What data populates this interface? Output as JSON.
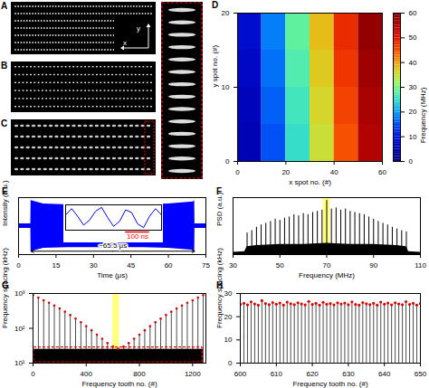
{
  "chart_data": [
    {
      "panel": "A",
      "type": "image",
      "labels": [
        "x",
        "y"
      ]
    },
    {
      "panel": "B",
      "type": "image"
    },
    {
      "panel": "C",
      "type": "image"
    },
    {
      "panel": "D",
      "type": "heatmap",
      "x_label": "x spot no. (#)",
      "y_label": "y spot no. (#)",
      "xlim": [
        0,
        60
      ],
      "xticks": [
        0,
        20,
        40,
        60
      ],
      "ylim": [
        0,
        20
      ],
      "yticks": [
        0,
        10,
        20
      ],
      "x_edges": [
        0,
        10,
        20,
        30,
        40,
        50,
        60
      ],
      "y_edges": [
        0,
        5,
        10,
        15,
        20
      ],
      "cells": [
        [
          5,
          15,
          25,
          35,
          45,
          55
        ],
        [
          6,
          16,
          26,
          36,
          46,
          56
        ],
        [
          7,
          17,
          27,
          37,
          47,
          57
        ],
        [
          8,
          18,
          28,
          38,
          48,
          58
        ]
      ],
      "colorbar": {
        "label": "Frequency (MHz)",
        "lim": [
          0,
          60
        ],
        "ticks": [
          0,
          10,
          20,
          30,
          40,
          50,
          60
        ]
      }
    },
    {
      "panel": "E",
      "type": "area",
      "x_label": "Time (μs)",
      "y_label": "Intensity (a.u.)",
      "xlim": [
        0,
        75
      ],
      "xticks": [
        0,
        15,
        30,
        45,
        60,
        75
      ],
      "ylim": [
        -1,
        1
      ],
      "tick_labels": "x",
      "color": "#0000ff",
      "x": [
        0,
        4.9,
        5,
        10,
        20,
        30,
        40,
        50,
        60,
        70,
        70.5,
        70.6,
        75
      ],
      "upper": [
        0.08,
        0.08,
        0.9,
        0.78,
        0.75,
        0.75,
        0.75,
        0.75,
        0.78,
        0.85,
        0.9,
        0.08,
        0.08
      ],
      "lower": [
        -0.08,
        -0.08,
        -0.9,
        -0.78,
        -0.75,
        -0.75,
        -0.75,
        -0.75,
        -0.78,
        -0.85,
        -0.9,
        -0.08,
        -0.08
      ],
      "annotation": {
        "text": "~65.5 μs",
        "x1": 5,
        "x2": 70.5
      },
      "inset": {
        "xlim": [
          0,
          400
        ],
        "ylim": [
          -1,
          1
        ],
        "color": "#0000ff",
        "x": [
          0,
          25,
          50,
          75,
          100,
          125,
          150,
          175,
          200,
          225,
          250,
          275,
          300,
          325,
          350,
          375,
          400
        ],
        "values": [
          0.2,
          0.7,
          0.1,
          -0.6,
          -0.2,
          0.5,
          0.8,
          0.0,
          -0.7,
          -0.3,
          0.6,
          0.4,
          -0.5,
          -0.8,
          0.1,
          0.7,
          0.2
        ],
        "scale_bar": {
          "value": 100,
          "label": "100 ns"
        }
      }
    },
    {
      "panel": "F",
      "type": "stem",
      "x_label": "Frequency (MHz)",
      "y_label": "PSD (a.u.)",
      "xlim": [
        30,
        110
      ],
      "xticks": [
        30,
        50,
        70,
        90,
        110
      ],
      "ylim": [
        0,
        100
      ],
      "tick_labels": "x",
      "color": "#000000",
      "x": [
        36,
        38,
        40,
        42,
        44,
        46,
        48,
        50,
        52,
        54,
        56,
        58,
        60,
        62,
        64,
        66,
        68,
        70,
        72,
        74,
        76,
        78,
        80,
        82,
        84,
        86,
        88,
        90,
        92,
        94,
        96,
        98,
        100,
        102,
        104
      ],
      "values": [
        38,
        42,
        48,
        52,
        55,
        58,
        62,
        60,
        64,
        66,
        70,
        68,
        72,
        70,
        74,
        76,
        78,
        95,
        80,
        82,
        78,
        80,
        76,
        74,
        72,
        70,
        66,
        62,
        58,
        55,
        52,
        48,
        45,
        42,
        40
      ],
      "noise_floor": {
        "x": [
          30,
          35,
          36,
          40,
          50,
          60,
          70,
          80,
          90,
          100,
          104,
          105,
          110
        ],
        "values": [
          4,
          5,
          14,
          16,
          18,
          18,
          20,
          18,
          18,
          16,
          14,
          5,
          4
        ]
      },
      "highlight": [
        68.5,
        71.5
      ]
    },
    {
      "panel": "G",
      "type": "stem",
      "log": "y",
      "x_label": "Frequency tooth no. (#)",
      "y_label": "Frequency spacing (kHz)",
      "xlim": [
        0,
        1300
      ],
      "xticks": [
        0,
        400,
        800,
        1200
      ],
      "ylim": [
        10,
        1000
      ],
      "yticks": [
        {
          "value": 10,
          "label": "10¹"
        },
        {
          "value": 100,
          "label": "10²"
        },
        {
          "value": 1000,
          "label": "10³"
        }
      ],
      "color": "#e00000",
      "marker": "circle",
      "x": [
        0,
        40,
        80,
        120,
        160,
        200,
        240,
        280,
        320,
        360,
        400,
        440,
        480,
        520,
        560,
        600,
        640,
        680,
        720,
        760,
        800,
        840,
        880,
        920,
        960,
        1000,
        1040,
        1080,
        1120,
        1160,
        1200,
        1240,
        1280
      ],
      "values": [
        900,
        760,
        640,
        540,
        450,
        370,
        300,
        240,
        190,
        150,
        115,
        88,
        66,
        50,
        38,
        30,
        26,
        30,
        38,
        50,
        66,
        88,
        115,
        150,
        190,
        240,
        300,
        370,
        450,
        540,
        640,
        760,
        900
      ],
      "dense_stems": {
        "x": [
          0,
          1280
        ],
        "value": 25
      }
    },
    {
      "panel": "H",
      "type": "stem",
      "x_label": "Frequency tooth no. (#)",
      "y_label": "Frequency spacing (kHz)",
      "xlim": [
        600,
        650
      ],
      "xticks": [
        600,
        610,
        620,
        630,
        640,
        650
      ],
      "ylim": [
        0,
        30
      ],
      "yticks": [
        0,
        10,
        20,
        30
      ],
      "color": "#e00000",
      "marker": "circle",
      "x": [
        600,
        601,
        602,
        603,
        604,
        605,
        606,
        607,
        608,
        609,
        610,
        611,
        612,
        613,
        614,
        615,
        616,
        617,
        618,
        619,
        620,
        621,
        622,
        623,
        624,
        625,
        626,
        627,
        628,
        629,
        630,
        631,
        632,
        633,
        634,
        635,
        636,
        637,
        638,
        639,
        640,
        641,
        642,
        643,
        644,
        645,
        646,
        647,
        648,
        649,
        650
      ],
      "values": [
        25.3,
        25.8,
        25.1,
        26.4,
        25.5,
        25.0,
        26.9,
        25.7,
        25.2,
        26.1,
        25.4,
        25.9,
        25.0,
        26.3,
        25.6,
        25.2,
        26.0,
        25.5,
        25.1,
        26.6,
        25.3,
        25.8,
        25.0,
        26.2,
        25.4,
        25.7,
        25.1,
        26.0,
        25.5,
        25.9,
        25.2,
        26.4,
        25.3,
        25.0,
        26.1,
        25.6,
        25.2,
        25.8,
        25.0,
        26.3,
        25.4,
        25.9,
        25.1,
        26.0,
        25.5,
        25.2,
        26.5,
        25.3,
        25.8,
        25.0,
        25.6
      ]
    }
  ]
}
